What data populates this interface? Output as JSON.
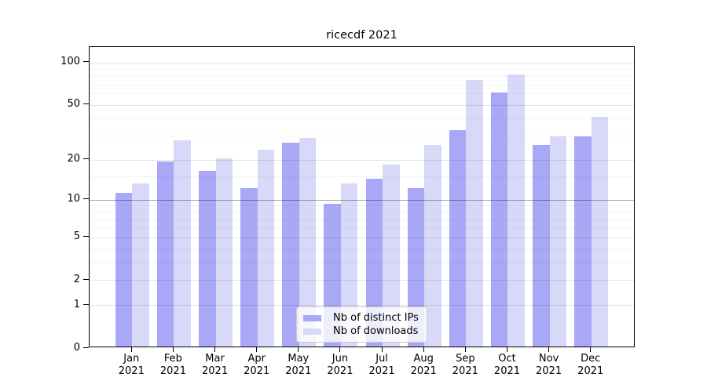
{
  "chart_data": {
    "type": "bar",
    "title": "ricecdf 2021",
    "categories": [
      "Jan",
      "Feb",
      "Mar",
      "Apr",
      "May",
      "Jun",
      "Jul",
      "Aug",
      "Sep",
      "Oct",
      "Nov",
      "Dec"
    ],
    "year": "2021",
    "series": [
      {
        "name": "Nb of distinct IPs",
        "color": "#a8a8f6",
        "values": [
          11,
          19,
          16,
          12,
          26,
          9,
          14,
          12,
          32,
          60,
          25,
          29
        ]
      },
      {
        "name": "Nb of downloads",
        "color": "#d8d8f8",
        "values": [
          13,
          27,
          20,
          23,
          28,
          13,
          18,
          25,
          73,
          80,
          29,
          40
        ]
      }
    ],
    "y_axis": {
      "scale": "log1p",
      "major_ticks": [
        0,
        1,
        2,
        5,
        10,
        20,
        50,
        100
      ],
      "minor_ticks": [
        3,
        4,
        6,
        7,
        8,
        9,
        15,
        30,
        40,
        60,
        70,
        80,
        90
      ],
      "emphasized_gridline": 10,
      "ylim": [
        0,
        130
      ]
    },
    "xlabel": "",
    "ylabel": "",
    "grid": true,
    "legend_position": "bottom-center",
    "legend_entries": [
      "Nb of distinct IPs",
      "Nb of downloads"
    ]
  }
}
